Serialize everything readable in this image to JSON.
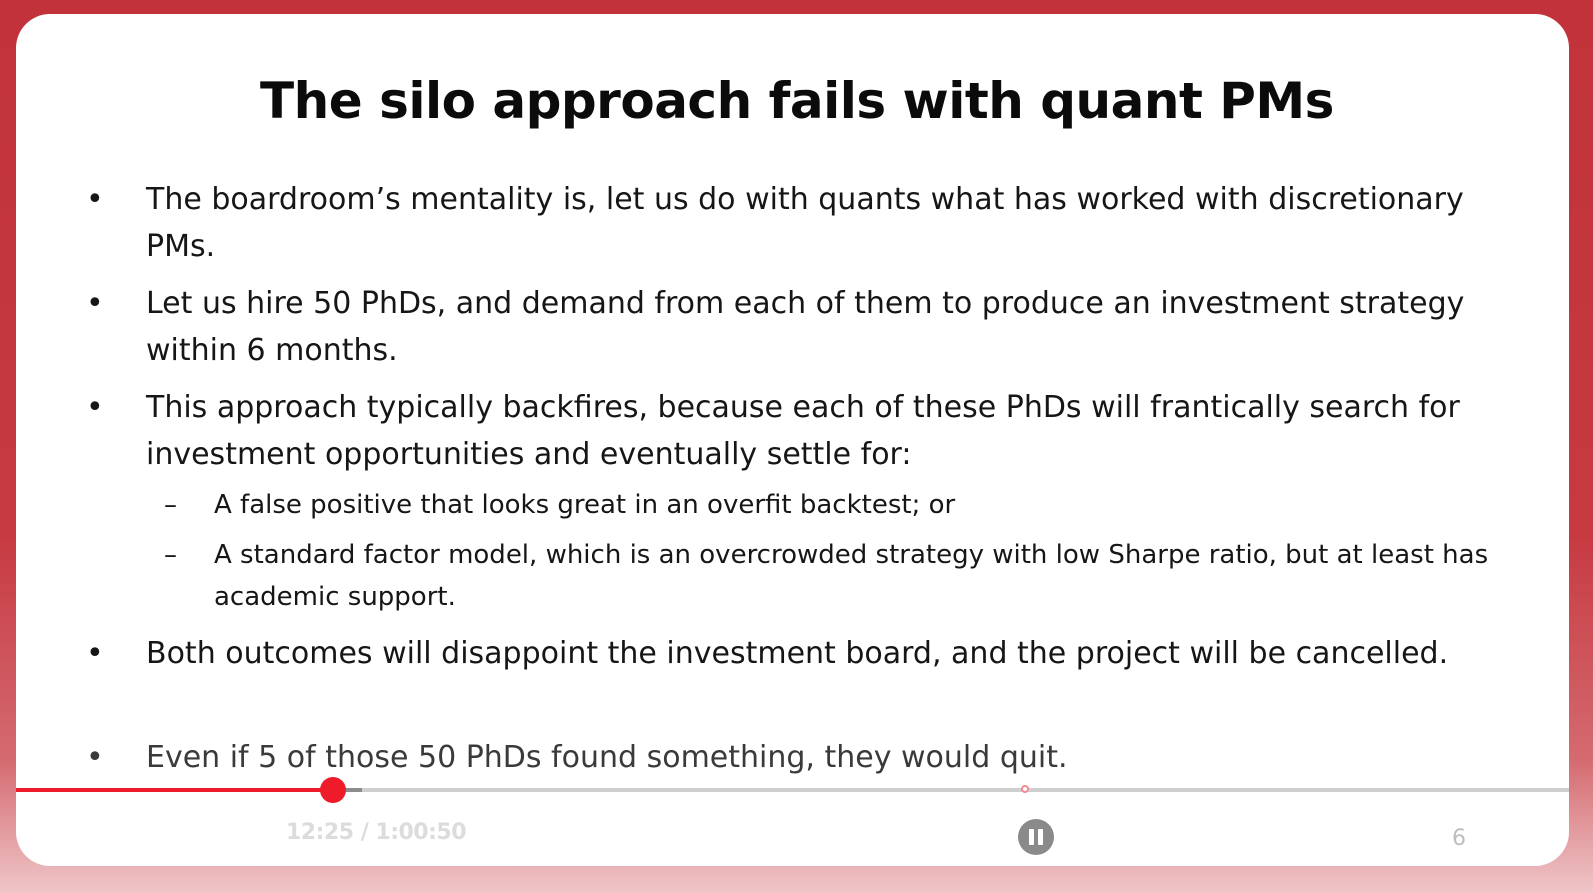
{
  "slide": {
    "title": "The silo approach fails with quant PMs",
    "bullets": [
      "The boardroom’s mentality is, let us do with quants what has worked with discretionary PMs.",
      "Let us hire 50 PhDs, and demand from each of them to produce an investment strategy within 6 months.",
      "This approach typically backfires, because each of these PhDs will frantically search for investment opportunities and eventually settle for:",
      "Both outcomes will disappoint the investment board, and the project will be cancelled.",
      "Even if 5 of those 50 PhDs found something, they would quit."
    ],
    "sub_bullets": [
      "A false positive that looks great in an overfit backtest; or",
      "A standard factor model, which is an overcrowded strategy with low Sharpe ratio, but at least has academic support."
    ],
    "bullet_glyph": "•",
    "dash_glyph": "–",
    "page_number": "6"
  },
  "player": {
    "time_display": "12:25 / 1:00:50",
    "progress_fraction": 0.2042,
    "accent_color": "#ee1c2a"
  }
}
